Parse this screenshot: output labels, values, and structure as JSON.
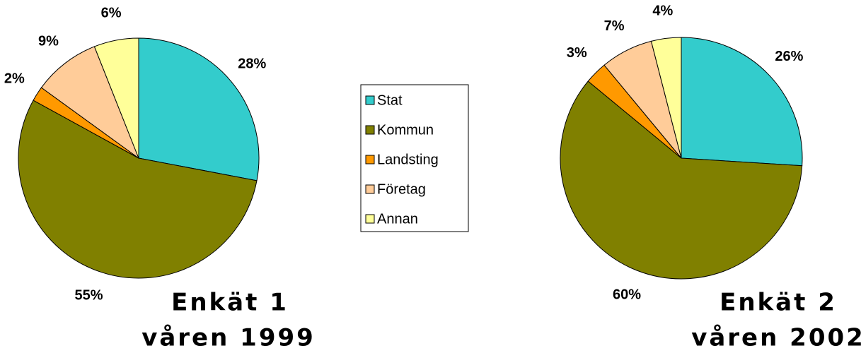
{
  "chart_data": [
    {
      "type": "pie",
      "title": "Enkät 1",
      "subtitle": "våren 1999",
      "categories": [
        "Stat",
        "Kommun",
        "Landsting",
        "Företag",
        "Annan"
      ],
      "values": [
        28,
        55,
        2,
        9,
        6
      ],
      "colors": [
        "#33cccc",
        "#808000",
        "#ff9900",
        "#ffcc99",
        "#ffff99"
      ]
    },
    {
      "type": "pie",
      "title": "Enkät 2",
      "subtitle": "våren 2002",
      "categories": [
        "Stat",
        "Kommun",
        "Landsting",
        "Företag",
        "Annan"
      ],
      "values": [
        26,
        60,
        3,
        7,
        4
      ],
      "colors": [
        "#33cccc",
        "#808000",
        "#ff9900",
        "#ffcc99",
        "#ffff99"
      ]
    }
  ]
}
